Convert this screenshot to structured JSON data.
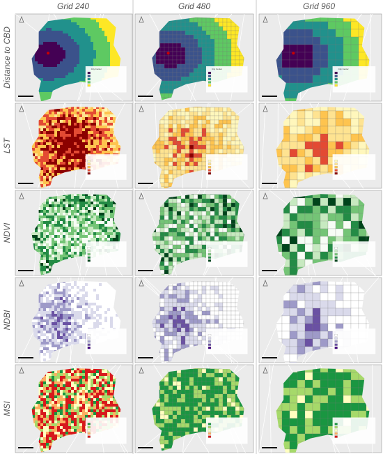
{
  "header": {
    "columns": [
      "Grid 240",
      "Grid 480",
      "Grid 960"
    ]
  },
  "rows": [
    {
      "label": "Distance to CBD"
    },
    {
      "label": "LST"
    },
    {
      "label": "NDVI"
    },
    {
      "label": "NDBI"
    },
    {
      "label": "MSI"
    }
  ],
  "legend": {
    "city_center": "City Center"
  }
}
